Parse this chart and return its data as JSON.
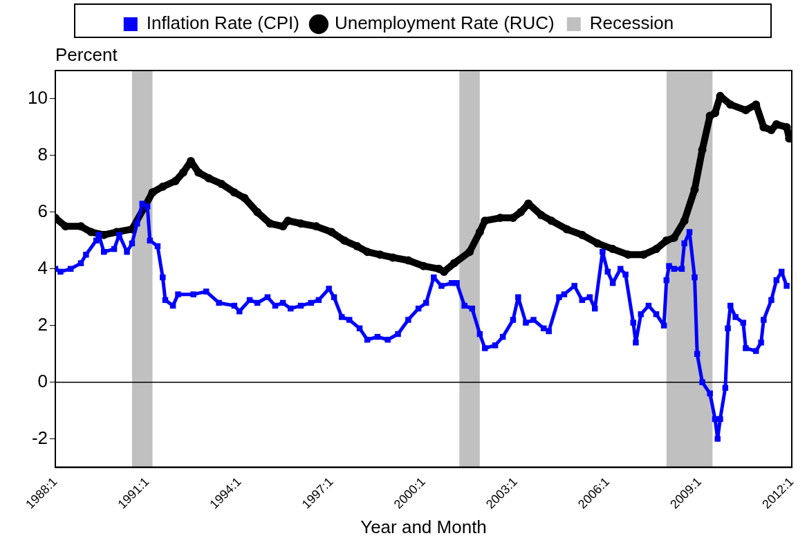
{
  "chart_data": {
    "type": "line",
    "ylabel": "Percent",
    "xlabel": "Year and Month",
    "xlim": [
      "1988-01",
      "2012-01"
    ],
    "xticks": [
      {
        "value": "1988-01",
        "label": "1988:1"
      },
      {
        "value": "1991-01",
        "label": "1991:1"
      },
      {
        "value": "1994-01",
        "label": "1994:1"
      },
      {
        "value": "1997-01",
        "label": "1997:1"
      },
      {
        "value": "2000-01",
        "label": "2000:1"
      },
      {
        "value": "2003-01",
        "label": "2003:1"
      },
      {
        "value": "2006-01",
        "label": "2006:1"
      },
      {
        "value": "2009-01",
        "label": "2009:1"
      },
      {
        "value": "2012-01",
        "label": "2012:1"
      }
    ],
    "ylim": [
      -3,
      11
    ],
    "yticks": [
      -2,
      0,
      2,
      4,
      6,
      8,
      10
    ],
    "grid": false,
    "legend": "top",
    "line_style": "solid",
    "series": [
      {
        "name": "Inflation Rate (CPI)",
        "color": "#0000ff",
        "marker": "square",
        "x": [
          "1988-01",
          "1988-03",
          "1988-07",
          "1988-11",
          "1989-01",
          "1989-05",
          "1989-06",
          "1989-08",
          "1989-12",
          "1990-02",
          "1990-05",
          "1990-07",
          "1990-09",
          "1990-11",
          "1991-01",
          "1991-02",
          "1991-05",
          "1991-07",
          "1991-08",
          "1991-11",
          "1992-01",
          "1992-07",
          "1992-12",
          "1993-05",
          "1993-11",
          "1994-01",
          "1994-05",
          "1994-08",
          "1994-12",
          "1995-03",
          "1995-06",
          "1995-09",
          "1996-01",
          "1996-05",
          "1996-08",
          "1996-12",
          "1997-02",
          "1997-05",
          "1997-08",
          "1997-12",
          "1998-03",
          "1998-07",
          "1998-11",
          "1999-03",
          "1999-07",
          "1999-11",
          "2000-02",
          "2000-05",
          "2000-08",
          "2000-12",
          "2001-02",
          "2001-05",
          "2001-08",
          "2001-11",
          "2002-01",
          "2002-05",
          "2002-08",
          "2002-12",
          "2003-02",
          "2003-05",
          "2003-08",
          "2003-12",
          "2004-02",
          "2004-06",
          "2004-08",
          "2004-12",
          "2005-03",
          "2005-06",
          "2005-08",
          "2005-11",
          "2006-01",
          "2006-03",
          "2006-06",
          "2006-08",
          "2006-11",
          "2006-12",
          "2007-02",
          "2007-05",
          "2007-08",
          "2007-11",
          "2007-12",
          "2008-01",
          "2008-03",
          "2008-06",
          "2008-07",
          "2008-09",
          "2008-11",
          "2008-12",
          "2009-02",
          "2009-05",
          "2009-07",
          "2009-08",
          "2009-09",
          "2009-11",
          "2009-12",
          "2010-01",
          "2010-03",
          "2010-06",
          "2010-07",
          "2010-11",
          "2011-01",
          "2011-02",
          "2011-05",
          "2011-07",
          "2011-09",
          "2011-11"
        ],
        "values": [
          4.0,
          3.9,
          4.0,
          4.2,
          4.5,
          5.0,
          5.2,
          4.6,
          4.7,
          5.2,
          4.6,
          4.9,
          5.6,
          6.3,
          6.2,
          5.0,
          4.8,
          3.7,
          2.9,
          2.7,
          3.1,
          3.1,
          3.2,
          2.8,
          2.7,
          2.5,
          2.9,
          2.8,
          3.0,
          2.7,
          2.8,
          2.6,
          2.7,
          2.8,
          2.9,
          3.3,
          3.0,
          2.3,
          2.2,
          1.9,
          1.5,
          1.6,
          1.5,
          1.7,
          2.2,
          2.6,
          2.8,
          3.7,
          3.4,
          3.5,
          3.5,
          2.7,
          2.6,
          1.7,
          1.2,
          1.3,
          1.6,
          2.2,
          3.0,
          2.1,
          2.2,
          1.9,
          1.8,
          3.0,
          3.1,
          3.4,
          2.9,
          3.0,
          2.6,
          4.6,
          3.9,
          3.5,
          4.0,
          3.8,
          2.1,
          1.4,
          2.4,
          2.7,
          2.4,
          2.0,
          3.6,
          4.1,
          4.0,
          4.0,
          4.9,
          5.3,
          3.7,
          1.0,
          0.0,
          -0.4,
          -1.3,
          -2.0,
          -1.3,
          -0.2,
          1.9,
          2.7,
          2.3,
          2.1,
          1.2,
          1.1,
          1.4,
          2.2,
          2.9,
          3.6,
          3.9,
          3.4
        ]
      },
      {
        "name": "Unemployment Rate (RUC)",
        "color": "#000000",
        "marker": "circle",
        "x": [
          "1988-01",
          "1988-05",
          "1988-11",
          "1989-03",
          "1989-08",
          "1990-01",
          "1990-07",
          "1990-12",
          "1991-03",
          "1991-07",
          "1991-12",
          "1992-03",
          "1992-06",
          "1992-09",
          "1993-01",
          "1993-06",
          "1993-11",
          "1994-03",
          "1994-08",
          "1995-01",
          "1995-06",
          "1995-08",
          "1996-01",
          "1996-07",
          "1997-01",
          "1997-06",
          "1997-11",
          "1998-03",
          "1998-08",
          "1999-01",
          "1999-07",
          "2000-01",
          "2000-07",
          "2000-09",
          "2001-01",
          "2001-07",
          "2001-11",
          "2002-01",
          "2002-07",
          "2002-12",
          "2003-03",
          "2003-06",
          "2003-11",
          "2004-03",
          "2004-09",
          "2005-03",
          "2005-09",
          "2006-03",
          "2006-09",
          "2007-03",
          "2007-08",
          "2007-12",
          "2008-03",
          "2008-07",
          "2008-11",
          "2009-02",
          "2009-05",
          "2009-07",
          "2009-09",
          "2010-01",
          "2010-07",
          "2010-11",
          "2011-02",
          "2011-05",
          "2011-07",
          "2011-11",
          "2011-12"
        ],
        "values": [
          5.8,
          5.5,
          5.5,
          5.3,
          5.2,
          5.3,
          5.4,
          6.2,
          6.7,
          6.9,
          7.1,
          7.4,
          7.8,
          7.4,
          7.2,
          7.0,
          6.7,
          6.5,
          6.0,
          5.6,
          5.5,
          5.7,
          5.6,
          5.5,
          5.3,
          5.0,
          4.8,
          4.6,
          4.5,
          4.4,
          4.3,
          4.1,
          4.0,
          3.9,
          4.2,
          4.6,
          5.3,
          5.7,
          5.8,
          5.8,
          6.0,
          6.3,
          5.9,
          5.7,
          5.4,
          5.2,
          4.9,
          4.7,
          4.5,
          4.5,
          4.7,
          5.0,
          5.1,
          5.7,
          6.8,
          8.2,
          9.4,
          9.5,
          10.1,
          9.8,
          9.6,
          9.8,
          9.0,
          8.9,
          9.1,
          9.0,
          8.6
        ]
      }
    ],
    "bands": [
      {
        "axis": "x",
        "from": "1990-07",
        "to": "1991-03",
        "label": "Recession",
        "color": "#c0c0c0"
      },
      {
        "axis": "x",
        "from": "2001-03",
        "to": "2001-11",
        "color": "#c0c0c0"
      },
      {
        "axis": "x",
        "from": "2007-12",
        "to": "2009-06",
        "color": "#c0c0c0"
      }
    ],
    "ref_lines": [
      {
        "axis": "y",
        "value": 0,
        "color": "#000000"
      }
    ]
  }
}
